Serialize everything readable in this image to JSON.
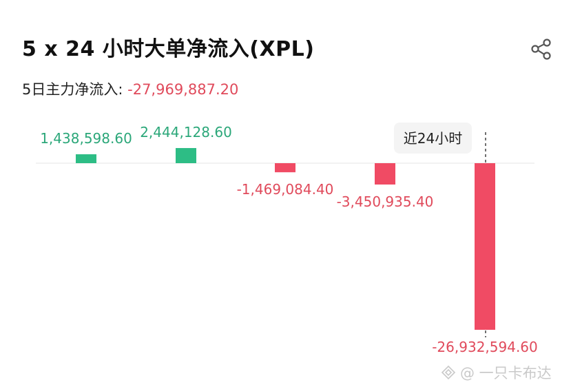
{
  "header": {
    "title": "5 x 24 小时大单净流入(XPL)",
    "share_icon": "share-icon"
  },
  "summary": {
    "label": "5日主力净流入:",
    "value": "-27,969,887.20"
  },
  "colors": {
    "positive": "#2dbd85",
    "negative": "#f04b64",
    "positive_text": "#2ba779",
    "negative_text": "#e04a5b"
  },
  "chart_data": {
    "type": "bar",
    "values": [
      1438598.6,
      2444128.6,
      -1469084.4,
      -3450935.4,
      -26932594.6
    ],
    "labels": [
      "1,438,598.60",
      "2,444,128.60",
      "-1,469,084.40",
      "-3,450,935.40",
      "-26,932,594.60"
    ],
    "highlight_label": "近24小时",
    "highlight_index": 4
  },
  "watermark": {
    "text": "@ 一只卡布达"
  }
}
